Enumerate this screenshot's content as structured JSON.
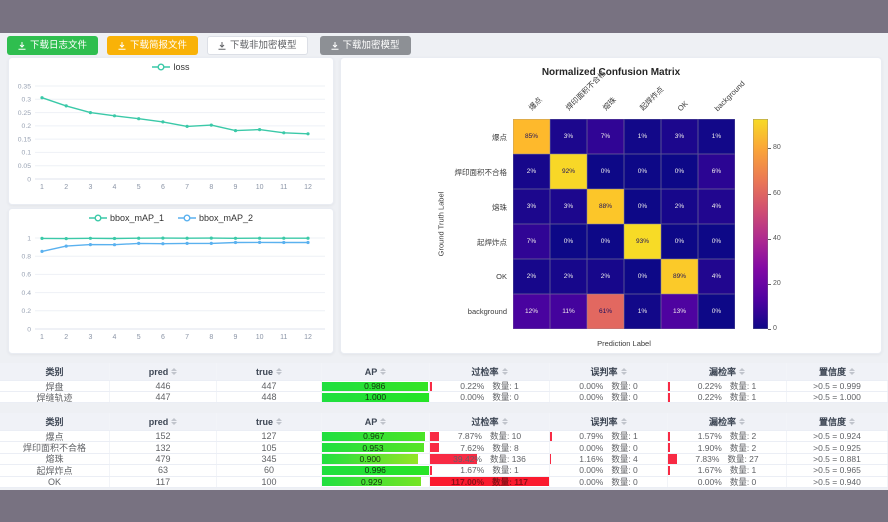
{
  "toolbar": {
    "buttons": [
      {
        "label": "下载日志文件",
        "style": "success"
      },
      {
        "label": "下载简报文件",
        "style": "warning"
      },
      {
        "label": "下载非加密模型",
        "style": "plain"
      },
      {
        "label": "下载加密模型",
        "style": "info"
      }
    ]
  },
  "colors": {
    "accent_teal": "#3bc9a8",
    "accent_blue": "#5ab1ef",
    "bar_red": "#f82a44",
    "bar_green": "#35d948",
    "btn_green": "#2fbe4f",
    "btn_orange": "#f9b207",
    "btn_info": "#8d9095",
    "page_bg": "#eef0f4",
    "frame_bg": "#787281"
  },
  "chart_data": [
    {
      "id": "loss",
      "type": "line",
      "x": [
        1,
        2,
        3,
        4,
        5,
        6,
        7,
        8,
        9,
        10,
        11,
        12
      ],
      "series": [
        {
          "name": "loss",
          "color": "#3bc9a8",
          "values": [
            0.306,
            0.275,
            0.25,
            0.238,
            0.227,
            0.215,
            0.198,
            0.203,
            0.182,
            0.186,
            0.174,
            0.17
          ]
        }
      ],
      "ylim": [
        0,
        0.35
      ],
      "yticks": [
        0,
        0.05,
        0.1,
        0.15,
        0.2,
        0.25,
        0.3,
        0.35
      ],
      "grid": true,
      "legend_position": "top"
    },
    {
      "id": "bbox_map",
      "type": "line",
      "x": [
        1,
        2,
        3,
        4,
        5,
        6,
        7,
        8,
        9,
        10,
        11,
        12
      ],
      "series": [
        {
          "name": "bbox_mAP_1",
          "color": "#3bc9a8",
          "values": [
            0.996,
            0.993,
            0.997,
            0.994,
            0.998,
            0.999,
            0.998,
            0.999,
            0.997,
            0.998,
            0.998,
            0.998
          ]
        },
        {
          "name": "bbox_mAP_2",
          "color": "#5ab1ef",
          "values": [
            0.853,
            0.911,
            0.928,
            0.926,
            0.941,
            0.937,
            0.941,
            0.941,
            0.951,
            0.952,
            0.95,
            0.951
          ]
        }
      ],
      "ylim": [
        0,
        1
      ],
      "yticks": [
        0,
        0.2,
        0.4,
        0.6,
        0.8,
        1
      ],
      "grid": true,
      "legend_position": "top"
    },
    {
      "id": "confusion",
      "type": "heatmap",
      "title": "Normalized Confusion Matrix",
      "xlabel": "Prediction Label",
      "ylabel": "Ground Truth Label",
      "labels": [
        "爆点",
        "焊印面积不合格",
        "熔珠",
        "起焊炸点",
        "OK",
        "background"
      ],
      "values_percent": [
        [
          85,
          3,
          7,
          1,
          3,
          1
        ],
        [
          2,
          92,
          0,
          0,
          0,
          6
        ],
        [
          3,
          3,
          88,
          0,
          2,
          4
        ],
        [
          7,
          0,
          0,
          93,
          0,
          0
        ],
        [
          2,
          2,
          2,
          0,
          89,
          4
        ],
        [
          12,
          11,
          61,
          1,
          13,
          0
        ]
      ],
      "colormap": "plasma",
      "colorbar_ticks": [
        0,
        20,
        40,
        60,
        80
      ],
      "scale_max": 93
    }
  ],
  "tables": [
    {
      "headers": [
        {
          "label": "类别",
          "sortable": false
        },
        {
          "label": "pred",
          "sortable": true
        },
        {
          "label": "true",
          "sortable": true
        },
        {
          "label": "AP",
          "sortable": true
        },
        {
          "label": "过检率",
          "sortable": true
        },
        {
          "label": "误判率",
          "sortable": true
        },
        {
          "label": "漏检率",
          "sortable": true
        },
        {
          "label": "置信度",
          "sortable": true
        }
      ],
      "rows": [
        {
          "label": "焊盘",
          "pred": "446",
          "true": "447",
          "ap": 0.986,
          "over": {
            "rate": "0.22%",
            "pct": 0.22,
            "count": "数量: 1"
          },
          "mis": {
            "rate": "0.00%",
            "pct": 0,
            "count": "数量: 0"
          },
          "miss": {
            "rate": "0.22%",
            "pct": 0.22,
            "count": "数量: 1"
          },
          "conf": ">0.5 = 0.999"
        },
        {
          "label": "焊缝轨迹",
          "pred": "447",
          "true": "448",
          "ap": 1.0,
          "over": {
            "rate": "0.00%",
            "pct": 0,
            "count": "数量: 0"
          },
          "mis": {
            "rate": "0.00%",
            "pct": 0,
            "count": "数量: 0"
          },
          "miss": {
            "rate": "0.22%",
            "pct": 0.22,
            "count": "数量: 1"
          },
          "conf": ">0.5 = 1.000"
        }
      ]
    },
    {
      "headers": [
        {
          "label": "类别",
          "sortable": false
        },
        {
          "label": "pred",
          "sortable": true
        },
        {
          "label": "true",
          "sortable": true
        },
        {
          "label": "AP",
          "sortable": true
        },
        {
          "label": "过检率",
          "sortable": true
        },
        {
          "label": "误判率",
          "sortable": true
        },
        {
          "label": "漏检率",
          "sortable": true
        },
        {
          "label": "置信度",
          "sortable": true
        }
      ],
      "rows": [
        {
          "label": "爆点",
          "pred": "152",
          "true": "127",
          "ap": 0.967,
          "over": {
            "rate": "7.87%",
            "pct": 7.87,
            "count": "数量: 10"
          },
          "mis": {
            "rate": "0.79%",
            "pct": 0.79,
            "count": "数量: 1"
          },
          "miss": {
            "rate": "1.57%",
            "pct": 1.57,
            "count": "数量: 2"
          },
          "conf": ">0.5 = 0.924"
        },
        {
          "label": "焊印面积不合格",
          "pred": "132",
          "true": "105",
          "ap": 0.953,
          "over": {
            "rate": "7.62%",
            "pct": 7.62,
            "count": "数量: 8"
          },
          "mis": {
            "rate": "0.00%",
            "pct": 0,
            "count": "数量: 0"
          },
          "miss": {
            "rate": "1.90%",
            "pct": 1.9,
            "count": "数量: 2"
          },
          "conf": ">0.5 = 0.925"
        },
        {
          "label": "熔珠",
          "pred": "479",
          "true": "345",
          "ap": 0.9,
          "over": {
            "rate": "39.42%",
            "pct": 39.42,
            "count": "数量: 136"
          },
          "mis": {
            "rate": "1.16%",
            "pct": 1.16,
            "count": "数量: 4"
          },
          "miss": {
            "rate": "7.83%",
            "pct": 7.83,
            "count": "数量: 27"
          },
          "conf": ">0.5 = 0.881"
        },
        {
          "label": "起焊炸点",
          "pred": "63",
          "true": "60",
          "ap": 0.996,
          "over": {
            "rate": "1.67%",
            "pct": 1.67,
            "count": "数量: 1"
          },
          "mis": {
            "rate": "0.00%",
            "pct": 0,
            "count": "数量: 0"
          },
          "miss": {
            "rate": "1.67%",
            "pct": 1.67,
            "count": "数量: 1"
          },
          "conf": ">0.5 = 0.965"
        },
        {
          "label": "OK",
          "pred": "117",
          "true": "100",
          "ap": 0.929,
          "over": {
            "rate": "117.00%",
            "pct": 117,
            "count": "数量: 117"
          },
          "mis": {
            "rate": "0.00%",
            "pct": 0,
            "count": "数量: 0"
          },
          "miss": {
            "rate": "0.00%",
            "pct": 0,
            "count": "数量: 0"
          },
          "conf": ">0.5 = 0.940"
        }
      ]
    }
  ]
}
